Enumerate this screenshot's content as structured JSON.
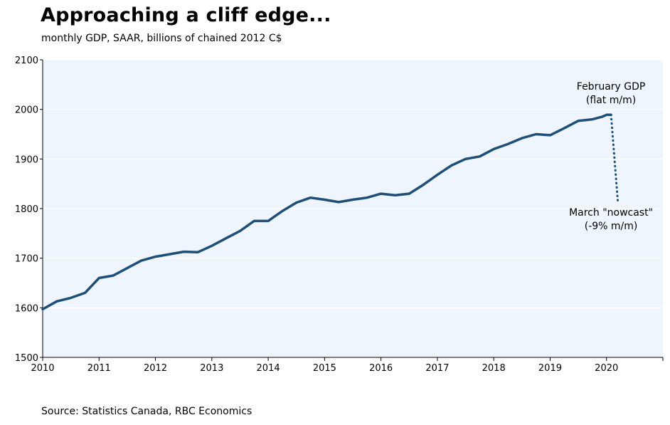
{
  "chart_data": {
    "type": "line",
    "title": "Approaching a cliff edge...",
    "subtitle": "monthly GDP, SAAR, billions of chained 2012 C$",
    "source": "Source: Statistics Canada, RBC Economics",
    "xlabel": "",
    "ylabel": "",
    "xlim": [
      2010,
      2021
    ],
    "ylim": [
      1500,
      2100
    ],
    "yticks": [
      "1500",
      "1600",
      "1700",
      "1800",
      "1900",
      "2000",
      "2100"
    ],
    "xticks": [
      "2010",
      "2011",
      "2012",
      "2013",
      "2014",
      "2015",
      "2016",
      "2017",
      "2018",
      "2019",
      "2020"
    ],
    "grid": "horizontal",
    "colors": {
      "line": "#1f4e79",
      "plot_bg": "#eef5fc",
      "grid": "#ffffff"
    },
    "series": [
      {
        "name": "Monthly GDP",
        "style": "solid",
        "points": [
          [
            2010.0,
            1597
          ],
          [
            2010.25,
            1613
          ],
          [
            2010.5,
            1620
          ],
          [
            2010.75,
            1630
          ],
          [
            2011.0,
            1660
          ],
          [
            2011.25,
            1665
          ],
          [
            2011.5,
            1680
          ],
          [
            2011.75,
            1695
          ],
          [
            2012.0,
            1703
          ],
          [
            2012.25,
            1708
          ],
          [
            2012.5,
            1713
          ],
          [
            2012.75,
            1712
          ],
          [
            2013.0,
            1725
          ],
          [
            2013.25,
            1740
          ],
          [
            2013.5,
            1755
          ],
          [
            2013.75,
            1775
          ],
          [
            2014.0,
            1775
          ],
          [
            2014.25,
            1795
          ],
          [
            2014.5,
            1812
          ],
          [
            2014.75,
            1822
          ],
          [
            2015.0,
            1818
          ],
          [
            2015.25,
            1813
          ],
          [
            2015.5,
            1818
          ],
          [
            2015.75,
            1822
          ],
          [
            2016.0,
            1830
          ],
          [
            2016.25,
            1827
          ],
          [
            2016.5,
            1830
          ],
          [
            2016.75,
            1848
          ],
          [
            2017.0,
            1868
          ],
          [
            2017.25,
            1887
          ],
          [
            2017.5,
            1900
          ],
          [
            2017.75,
            1905
          ],
          [
            2018.0,
            1920
          ],
          [
            2018.25,
            1930
          ],
          [
            2018.5,
            1942
          ],
          [
            2018.75,
            1950
          ],
          [
            2019.0,
            1948
          ],
          [
            2019.25,
            1962
          ],
          [
            2019.5,
            1977
          ],
          [
            2019.75,
            1980
          ],
          [
            2019.92,
            1985
          ],
          [
            2020.0,
            1989
          ],
          [
            2020.08,
            1989
          ]
        ]
      },
      {
        "name": "March nowcast",
        "style": "dotted",
        "points": [
          [
            2020.08,
            1989
          ],
          [
            2020.2,
            1815
          ]
        ]
      }
    ],
    "annotations": [
      {
        "lines": [
          "February GDP",
          "(flat m/m)"
        ],
        "x": 2020.08,
        "y": 2040
      },
      {
        "lines": [
          "March \"nowcast\"",
          "(-9% m/m)"
        ],
        "x": 2020.08,
        "y": 1786
      }
    ]
  }
}
